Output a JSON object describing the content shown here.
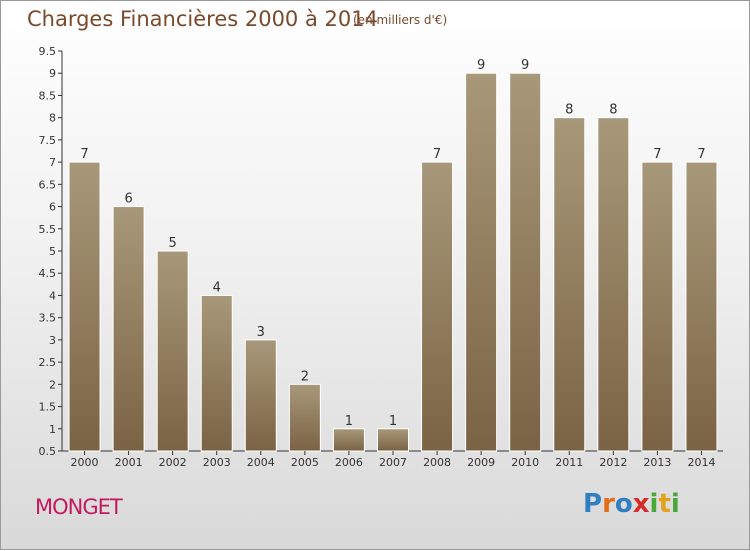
{
  "title": "Charges Financières 2000 à 2014",
  "subtitle": "(en milliers d'€)",
  "commune": "MONGET",
  "logo": {
    "letters": [
      "P",
      "r",
      "o",
      "x",
      "i",
      "t",
      "i"
    ],
    "colors": [
      "#2f7fc1",
      "#e36c1c",
      "#2f7fc1",
      "#d62b2b",
      "#4aa83a",
      "#e3a21c",
      "#4aa83a"
    ]
  },
  "colors": {
    "bar_top": "#a8987a",
    "bar_bottom": "#7a6344",
    "bar_border": "#ffffff",
    "axis": "#333333",
    "grid": "#999999"
  },
  "chart_data": {
    "type": "bar",
    "title": "Charges Financières 2000 à 2014",
    "subtitle": "(en milliers d'€)",
    "categories": [
      "2000",
      "2001",
      "2002",
      "2003",
      "2004",
      "2005",
      "2006",
      "2007",
      "2008",
      "2009",
      "2010",
      "2011",
      "2012",
      "2013",
      "2014"
    ],
    "values": [
      7,
      6,
      5,
      4,
      3,
      2,
      1,
      1,
      7,
      9,
      9,
      8,
      8,
      7,
      7
    ],
    "ylim": [
      0.5,
      9.5
    ],
    "yticks": [
      "0.5",
      "1",
      "1.5",
      "2",
      "2.5",
      "3",
      "3.5",
      "4",
      "4.5",
      "5",
      "5.5",
      "6",
      "6.5",
      "7",
      "7.5",
      "8",
      "8.5",
      "9",
      "9.5"
    ],
    "xlabel": "",
    "ylabel": "",
    "grid": false,
    "legend": "none"
  }
}
